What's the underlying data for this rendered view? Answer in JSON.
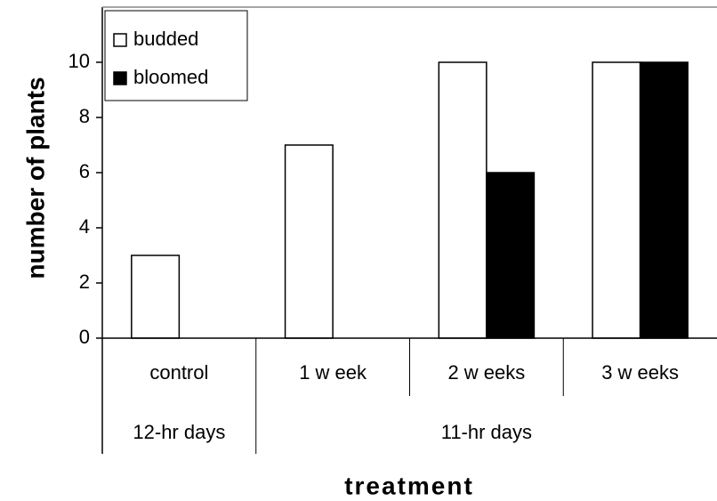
{
  "chart_data": {
    "type": "bar",
    "categories": [
      "control",
      "1 w eek",
      "2 w eeks",
      "3 w eeks"
    ],
    "groups": [
      "12-hr days",
      "11-hr days"
    ],
    "series": [
      {
        "name": "budded",
        "color": "#ffffff",
        "values": [
          3,
          7,
          10,
          10
        ]
      },
      {
        "name": "bloomed",
        "color": "#000000",
        "values": [
          0,
          0,
          6,
          10
        ]
      }
    ],
    "xlabel": "treatment",
    "ylabel": "number of plants",
    "ylim": [
      0,
      12
    ],
    "yticks": [
      0,
      2,
      4,
      6,
      8,
      10
    ],
    "legend": "upper left"
  }
}
